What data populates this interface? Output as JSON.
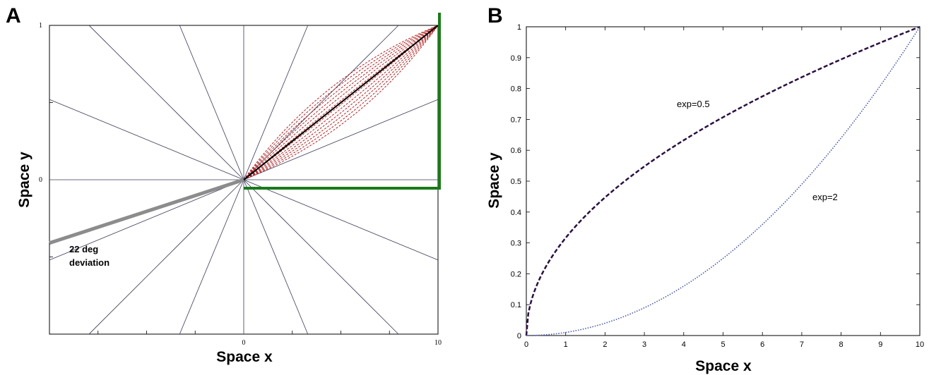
{
  "chart_data": [
    {
      "panel": "A",
      "type": "line",
      "xlabel": "Space x",
      "ylabel": "Space y",
      "x_ticks": [
        "0",
        "10"
      ],
      "y_ticks": [
        "0",
        "1"
      ],
      "xlim": [
        -10,
        10
      ],
      "ylim": [
        -1,
        1
      ],
      "grid": false,
      "spokes": {
        "center": [
          0,
          0
        ],
        "angles_deg": [
          0,
          22.5,
          45,
          67.5,
          90,
          112.5,
          135,
          157.5,
          180,
          202.5,
          225,
          247.5,
          270,
          292.5,
          315,
          337.5
        ],
        "color": "#3a3a5a"
      },
      "target_line": {
        "from": [
          0,
          0
        ],
        "to": [
          10,
          1
        ],
        "color": "#000000"
      },
      "trajectory_bundle": {
        "from": [
          0,
          0
        ],
        "to": [
          10,
          1
        ],
        "count": 12,
        "color": "#b22222"
      },
      "deviation_line": {
        "from": [
          0,
          0
        ],
        "to": [
          -10,
          -0.41
        ],
        "color": "#8c8c8c"
      },
      "bracket": {
        "color": "#1a7a1a"
      },
      "annotation": [
        "22 deg",
        "deviation"
      ]
    },
    {
      "panel": "B",
      "type": "line",
      "xlabel": "Space x",
      "ylabel": "Space y",
      "x_ticks": [
        0,
        1,
        2,
        3,
        4,
        5,
        6,
        7,
        8,
        9,
        10
      ],
      "y_ticks": [
        0,
        0.1,
        0.2,
        0.3,
        0.4,
        0.5,
        0.6,
        0.7,
        0.8,
        0.9,
        1
      ],
      "xlim": [
        0,
        10
      ],
      "ylim": [
        0,
        1
      ],
      "grid": false,
      "series": [
        {
          "name": "exp=0.5",
          "exponent": 0.5,
          "style": "dashed",
          "color": "#2b1040",
          "x": [
            0,
            0.1,
            0.25,
            0.5,
            1,
            1.5,
            2,
            3,
            4,
            5,
            6,
            7,
            8,
            9,
            10
          ],
          "y": [
            0,
            0.1,
            0.158,
            0.224,
            0.316,
            0.387,
            0.447,
            0.548,
            0.632,
            0.707,
            0.775,
            0.837,
            0.894,
            0.949,
            1
          ]
        },
        {
          "name": "exp=2",
          "exponent": 2,
          "style": "dotted",
          "color": "#4a5aa8",
          "x": [
            0,
            1,
            2,
            3,
            4,
            5,
            6,
            7,
            8,
            9,
            10
          ],
          "y": [
            0,
            0.01,
            0.04,
            0.09,
            0.16,
            0.25,
            0.36,
            0.49,
            0.64,
            0.81,
            1
          ]
        }
      ]
    }
  ]
}
